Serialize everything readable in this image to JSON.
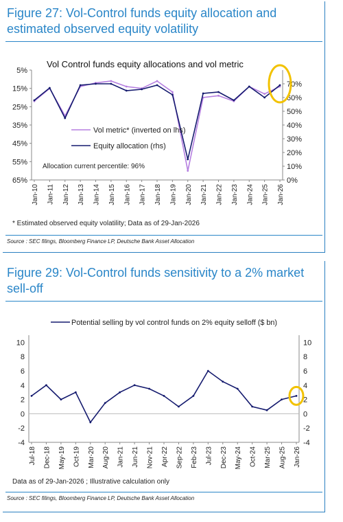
{
  "figures": [
    {
      "heading": "Figure 27: Vol-Control funds equity allocation and estimated observed equity volatility",
      "footnote": "* Estimated observed equity volatility;   Data as of 29-Jan-2026",
      "source": "Source : SEC filings, Bloomberg Finance LP, Deutsche Bank Asset Allocation"
    },
    {
      "heading": "Figure 29: Vol-Control funds sensitivity to a 2% market sell-off",
      "footnote": "Data as of 29-Jan-2026   ; Illustrative calculation only",
      "source": "Source : SEC filings, Bloomberg Finance LP, Deutsche Bank Asset Allocation"
    }
  ],
  "chart_data": [
    {
      "type": "line",
      "title": "Vol Control funds equity allocations and vol metric",
      "x": [
        "Jan-10",
        "Jan-11",
        "Jan-12",
        "Jan-13",
        "Jan-14",
        "Jan-15",
        "Jan-16",
        "Jan-17",
        "Jan-18",
        "Jan-19",
        "Jan-20",
        "Jan-21",
        "Jan-22",
        "Jan-23",
        "Jan-24",
        "Jan-25",
        "Jan-26"
      ],
      "ylim_left": [
        65,
        5
      ],
      "ylim_left_ticks": [
        "5%",
        "15%",
        "25%",
        "35%",
        "45%",
        "55%",
        "65%"
      ],
      "ylim_right": [
        0,
        80
      ],
      "ylim_right_ticks": [
        "0%",
        "10%",
        "20%",
        "30%",
        "40%",
        "50%",
        "60%",
        "70%"
      ],
      "annotation": "Allocation current percentile: 96%",
      "series": [
        {
          "name": "Vol metric* (inverted on lhs)",
          "color": "#b57fe0",
          "axis": "left",
          "values": [
            22,
            15,
            30,
            14,
            12,
            11,
            14,
            15,
            11,
            17,
            60,
            20,
            19,
            22,
            14,
            18,
            14
          ]
        },
        {
          "name": "Equity allocation (rhs)",
          "color": "#141a6e",
          "axis": "right",
          "values": [
            58,
            67,
            45,
            69,
            70,
            70,
            65,
            66,
            69,
            62,
            15,
            63,
            64,
            58,
            68,
            60,
            69
          ]
        }
      ],
      "highlight": "latest values circled in yellow"
    },
    {
      "type": "line",
      "x": [
        "Jul-18",
        "Dec-18",
        "May-19",
        "Oct-19",
        "Mar-20",
        "Aug-20",
        "Jan-21",
        "Jun-21",
        "Nov-21",
        "Apr-22",
        "Sep-22",
        "Feb-23",
        "Jul-23",
        "Dec-23",
        "May-24",
        "Oct-24",
        "Mar-25",
        "Aug-25",
        "Jan-26"
      ],
      "ylim": [
        -4,
        11
      ],
      "yticks": [
        -4,
        -2,
        0,
        2,
        4,
        6,
        8,
        10
      ],
      "series": [
        {
          "name": "Potential selling by vol control funds on 2% equity selloff ($ bn)",
          "color": "#141a6e",
          "values": [
            2.5,
            4.0,
            2.0,
            3.0,
            -1.2,
            1.5,
            3.0,
            4.0,
            3.5,
            2.5,
            1.0,
            2.5,
            6.0,
            4.5,
            3.5,
            1.0,
            0.5,
            2.0,
            2.5
          ]
        }
      ],
      "highlight": "latest value circled in yellow"
    }
  ],
  "colors": {
    "accent": "#2a86c8",
    "allocation": "#141a6e",
    "vol": "#b57fe0",
    "highlight": "#f2c200"
  }
}
